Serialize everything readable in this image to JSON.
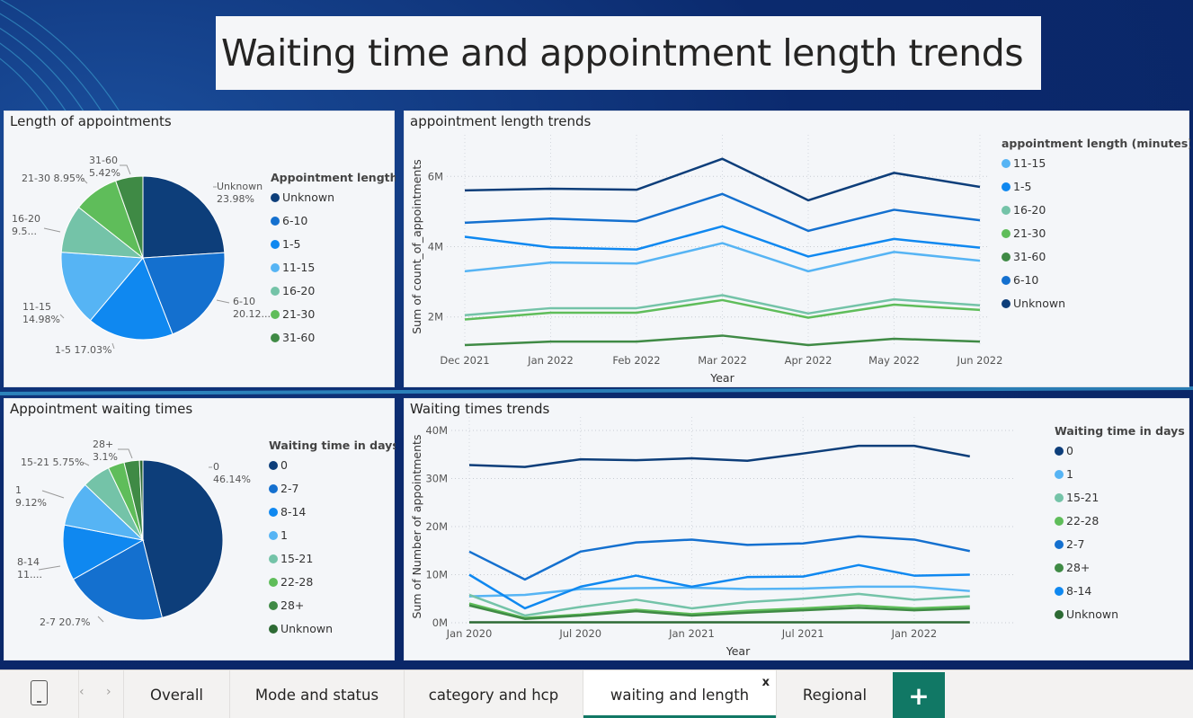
{
  "header": {
    "title": "Waiting time and appointment length trends"
  },
  "colors": {
    "navy": "#0d3e7a",
    "blue1": "#1470cf",
    "blue2": "#0f88f0",
    "lightblue": "#56b4f4",
    "teal": "#74c3a8",
    "green": "#5fbd5a",
    "darkgreen": "#3f8a45",
    "darkestgreen": "#2d6a34",
    "accent": "#117865"
  },
  "length_pie": {
    "title": "Length of appointments",
    "legend_title": "Appointment length",
    "chart_data": {
      "type": "pie",
      "slices": [
        {
          "label": "Unknown",
          "value": 23.98,
          "value_label": "23.98%",
          "color": "#0d3e7a"
        },
        {
          "label": "6-10",
          "value": 20.12,
          "value_label": "20.12...",
          "color": "#1470cf"
        },
        {
          "label": "1-5",
          "value": 17.03,
          "value_label": "17.03%",
          "color": "#0f88f0"
        },
        {
          "label": "11-15",
          "value": 14.98,
          "value_label": "14.98%",
          "color": "#56b4f4"
        },
        {
          "label": "16-20",
          "value": 9.52,
          "value_label": "9.5...",
          "color": "#74c3a8"
        },
        {
          "label": "21-30",
          "value": 8.95,
          "value_label": "8.95%",
          "color": "#5fbd5a"
        },
        {
          "label": "31-60",
          "value": 5.42,
          "value_label": "5.42%",
          "color": "#3f8a45"
        }
      ]
    }
  },
  "length_trend": {
    "title": "appointment length trends",
    "legend_title": "appointment length (minutes)",
    "chart_data": {
      "type": "line",
      "x": [
        "Dec 2021",
        "Jan 2022",
        "Feb 2022",
        "Mar 2022",
        "Apr 2022",
        "May 2022",
        "Jun 2022"
      ],
      "xlabel": "Year",
      "ylabel": "Sum of count_of_appointments",
      "ylim": [
        1.2,
        6.8
      ],
      "yticks": [
        {
          "v": 2,
          "label": "2M"
        },
        {
          "v": 4,
          "label": "4M"
        },
        {
          "v": 6,
          "label": "6M"
        }
      ],
      "series": [
        {
          "name": "11-15",
          "color": "#56b4f4",
          "values": [
            3.3,
            3.55,
            3.52,
            4.1,
            3.3,
            3.85,
            3.6
          ]
        },
        {
          "name": "1-5",
          "color": "#0f88f0",
          "values": [
            4.28,
            3.98,
            3.92,
            4.58,
            3.72,
            4.22,
            3.97
          ]
        },
        {
          "name": "16-20",
          "color": "#74c3a8",
          "values": [
            2.05,
            2.25,
            2.25,
            2.62,
            2.1,
            2.5,
            2.33
          ]
        },
        {
          "name": "21-30",
          "color": "#5fbd5a",
          "values": [
            1.93,
            2.12,
            2.12,
            2.48,
            1.98,
            2.35,
            2.2
          ]
        },
        {
          "name": "31-60",
          "color": "#3f8a45",
          "values": [
            1.2,
            1.3,
            1.3,
            1.47,
            1.2,
            1.38,
            1.3
          ]
        },
        {
          "name": "6-10",
          "color": "#1470cf",
          "values": [
            4.68,
            4.8,
            4.72,
            5.5,
            4.45,
            5.05,
            4.75
          ]
        },
        {
          "name": "Unknown",
          "color": "#0d3e7a",
          "values": [
            5.6,
            5.65,
            5.62,
            6.5,
            5.32,
            6.1,
            5.7
          ]
        }
      ]
    }
  },
  "wait_pie": {
    "title": "Appointment waiting times",
    "legend_title": "Waiting time in days",
    "chart_data": {
      "type": "pie",
      "slices": [
        {
          "label": "0",
          "value": 46.14,
          "value_label": "46.14%",
          "color": "#0d3e7a"
        },
        {
          "label": "2-7",
          "value": 20.7,
          "value_label": "20.7%",
          "color": "#1470cf"
        },
        {
          "label": "8-14",
          "value": 11.19,
          "value_label": "11....",
          "color": "#0f88f0"
        },
        {
          "label": "1",
          "value": 9.12,
          "value_label": "9.12%",
          "color": "#56b4f4"
        },
        {
          "label": "15-21",
          "value": 5.75,
          "value_label": "5.75%",
          "color": "#74c3a8"
        },
        {
          "label": "22-28",
          "value": 3.3,
          "value_label": "",
          "color": "#5fbd5a"
        },
        {
          "label": "28+",
          "value": 3.1,
          "value_label": "3.1%",
          "color": "#3f8a45"
        },
        {
          "label": "Unknown",
          "value": 0.7,
          "value_label": "",
          "color": "#2d6a34"
        }
      ]
    }
  },
  "wait_trend": {
    "title": "Waiting times trends",
    "legend_title": "Waiting time in days",
    "chart_data": {
      "type": "line",
      "x": [
        0,
        1,
        2,
        3,
        4,
        5,
        6,
        7,
        8,
        9,
        10,
        11,
        12,
        13,
        14,
        15,
        16,
        17,
        18,
        19,
        20,
        21,
        22,
        23,
        24,
        25,
        26,
        27,
        28,
        29
      ],
      "xticks": [
        {
          "v": 0,
          "label": "Jan 2020"
        },
        {
          "v": 6,
          "label": "Jul 2020"
        },
        {
          "v": 12,
          "label": "Jan 2021"
        },
        {
          "v": 18,
          "label": "Jul 2021"
        },
        {
          "v": 24,
          "label": "Jan 2022"
        }
      ],
      "xlabel": "Year",
      "ylabel": "Sum of Number of appointments",
      "ylim": [
        0,
        40
      ],
      "yticks": [
        {
          "v": 0,
          "label": "0M"
        },
        {
          "v": 10,
          "label": "10M"
        },
        {
          "v": 20,
          "label": "20M"
        },
        {
          "v": 30,
          "label": "30M"
        },
        {
          "v": 40,
          "label": "40M"
        }
      ],
      "series": [
        {
          "name": "0",
          "color": "#0d3e7a",
          "points": [
            [
              0,
              32.8
            ],
            [
              3,
              32.4
            ],
            [
              6,
              34.0
            ],
            [
              9,
              33.8
            ],
            [
              12,
              34.2
            ],
            [
              15,
              33.7
            ],
            [
              18,
              35.2
            ],
            [
              21,
              36.8
            ],
            [
              24,
              36.8
            ],
            [
              27,
              34.6
            ]
          ]
        },
        {
          "name": "1",
          "color": "#56b4f4",
          "points": [
            [
              0,
              5.5
            ],
            [
              3,
              5.8
            ],
            [
              6,
              7.0
            ],
            [
              9,
              7.2
            ],
            [
              12,
              7.3
            ],
            [
              15,
              7.0
            ],
            [
              18,
              7.1
            ],
            [
              21,
              7.5
            ],
            [
              24,
              7.5
            ],
            [
              27,
              6.6
            ]
          ]
        },
        {
          "name": "15-21",
          "color": "#74c3a8",
          "points": [
            [
              0,
              5.8
            ],
            [
              3,
              1.5
            ],
            [
              6,
              3.3
            ],
            [
              9,
              4.8
            ],
            [
              12,
              3.0
            ],
            [
              15,
              4.3
            ],
            [
              18,
              5.0
            ],
            [
              21,
              6.0
            ],
            [
              24,
              4.8
            ],
            [
              27,
              5.5
            ]
          ]
        },
        {
          "name": "22-28",
          "color": "#5fbd5a",
          "points": [
            [
              0,
              4.0
            ],
            [
              3,
              1.0
            ],
            [
              6,
              1.7
            ],
            [
              9,
              2.7
            ],
            [
              12,
              1.8
            ],
            [
              15,
              2.5
            ],
            [
              18,
              3.0
            ],
            [
              21,
              3.6
            ],
            [
              24,
              3.0
            ],
            [
              27,
              3.4
            ]
          ]
        },
        {
          "name": "2-7",
          "color": "#1470cf",
          "points": [
            [
              0,
              14.8
            ],
            [
              3,
              9.0
            ],
            [
              6,
              14.8
            ],
            [
              9,
              16.7
            ],
            [
              12,
              17.3
            ],
            [
              15,
              16.2
            ],
            [
              18,
              16.5
            ],
            [
              21,
              18.0
            ],
            [
              24,
              17.3
            ],
            [
              27,
              14.9
            ]
          ]
        },
        {
          "name": "28+",
          "color": "#3f8a45",
          "points": [
            [
              0,
              3.6
            ],
            [
              3,
              0.8
            ],
            [
              6,
              1.5
            ],
            [
              9,
              2.4
            ],
            [
              12,
              1.5
            ],
            [
              15,
              2.1
            ],
            [
              18,
              2.6
            ],
            [
              21,
              3.1
            ],
            [
              24,
              2.6
            ],
            [
              27,
              3.0
            ]
          ]
        },
        {
          "name": "8-14",
          "color": "#0f88f0",
          "points": [
            [
              0,
              10.0
            ],
            [
              3,
              3.0
            ],
            [
              6,
              7.5
            ],
            [
              9,
              9.8
            ],
            [
              12,
              7.5
            ],
            [
              15,
              9.5
            ],
            [
              18,
              9.6
            ],
            [
              21,
              12.0
            ],
            [
              24,
              9.8
            ],
            [
              27,
              10.0
            ]
          ]
        },
        {
          "name": "Unknown",
          "color": "#2d6a34",
          "points": [
            [
              0,
              0.1
            ],
            [
              27,
              0.1
            ]
          ]
        }
      ]
    }
  },
  "tabs": {
    "items": [
      {
        "label": "Overall"
      },
      {
        "label": "Mode and status"
      },
      {
        "label": "category and hcp"
      },
      {
        "label": "waiting and length",
        "close": "x"
      },
      {
        "label": "Regional"
      }
    ],
    "add_label": "+",
    "prev_arrow": "‹",
    "next_arrow": "›"
  }
}
